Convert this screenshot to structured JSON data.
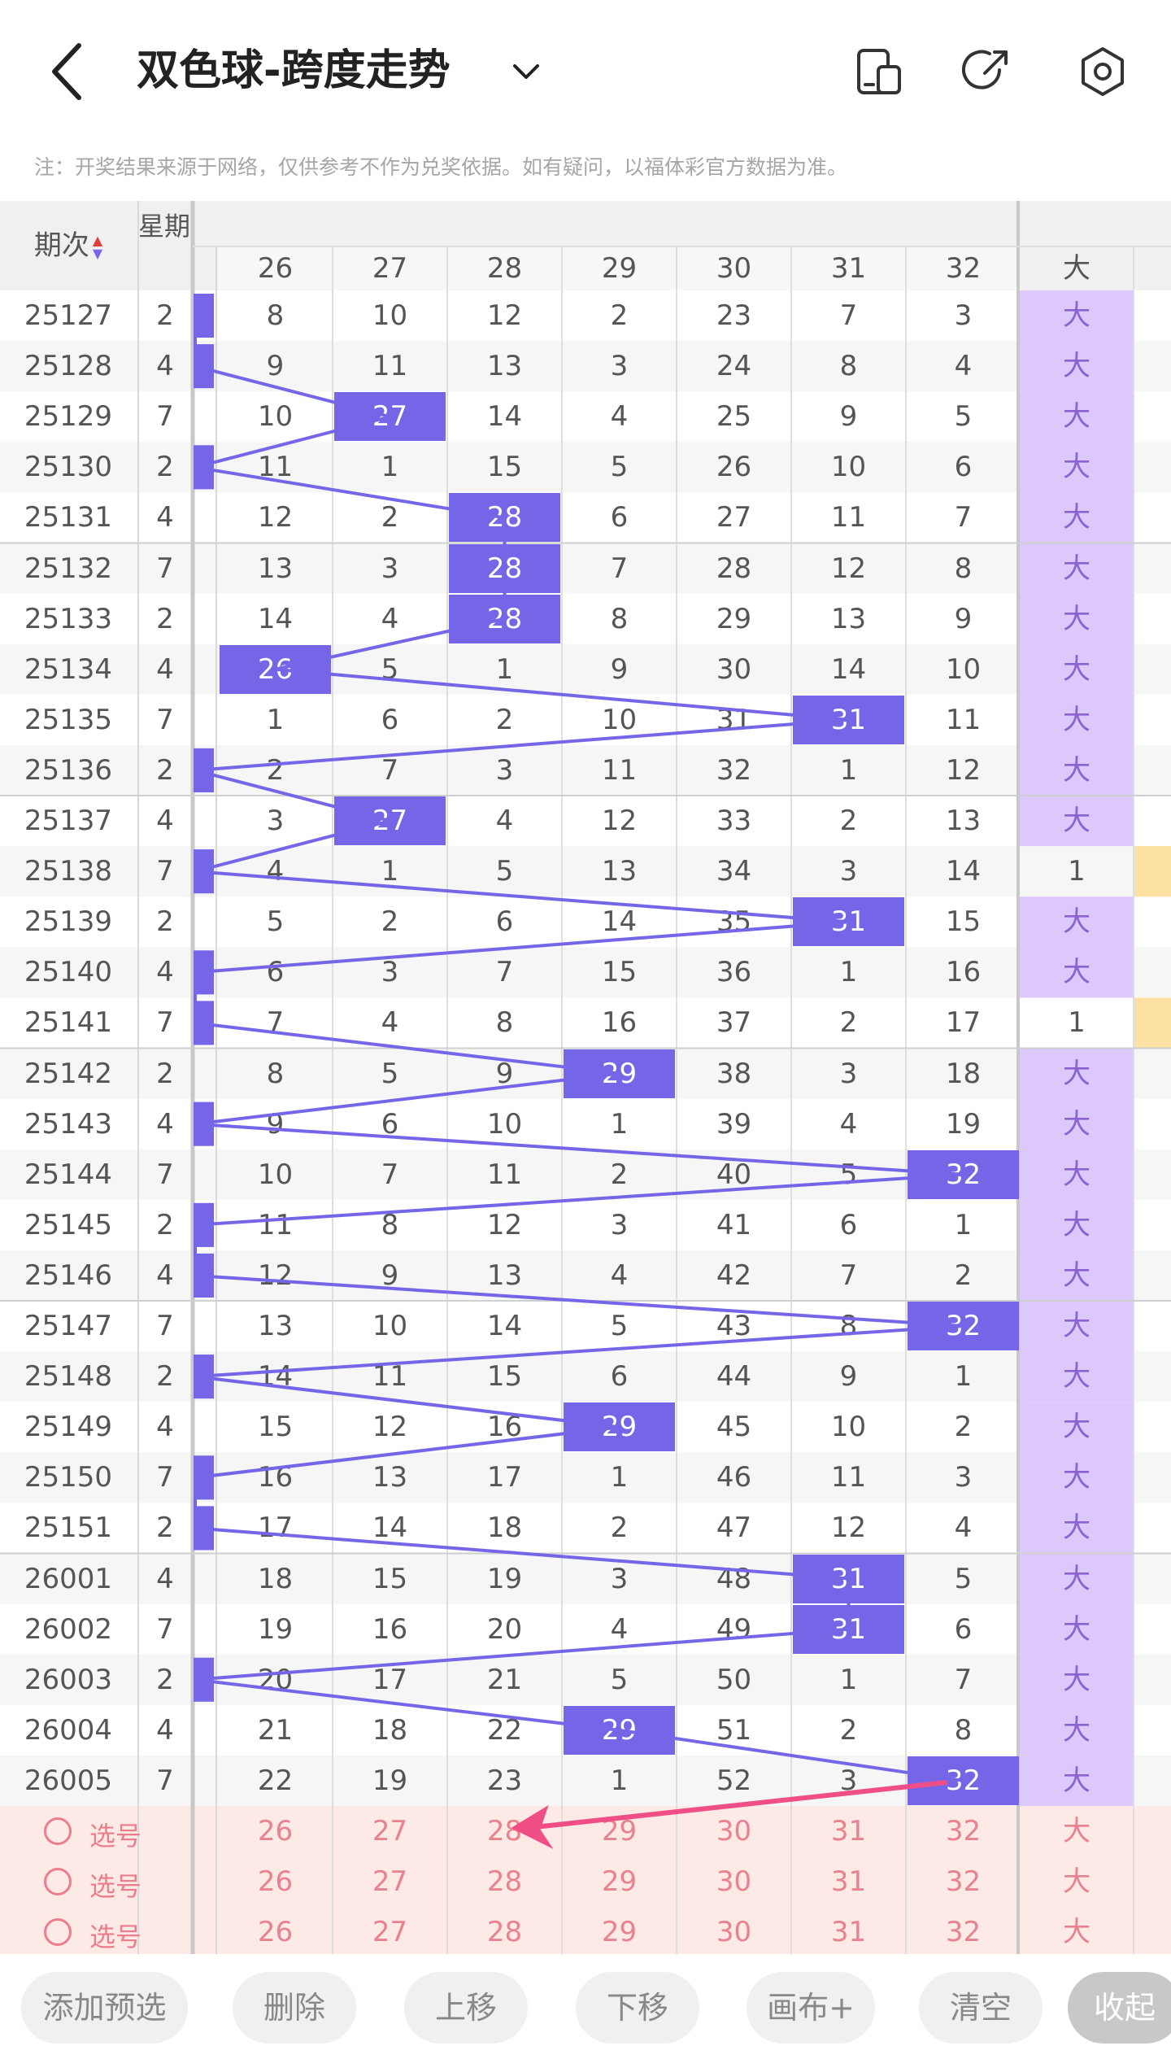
{
  "header": {
    "title": "双色球-跨度走势",
    "back_icon": "arrow-left-icon",
    "dropdown_icon": "chevron-down-icon",
    "icons": [
      "phone-layout-icon",
      "share-icon",
      "settings-icon"
    ]
  },
  "notice": "注：开奖结果来源于网络，仅供参考不作为兑奖依据。如有疑问，以福体彩官方数据为准。",
  "table": {
    "col_issue_label": "期次",
    "col_weekday_label": "星期",
    "span_columns": [
      "26",
      "27",
      "28",
      "29",
      "30",
      "31",
      "32"
    ],
    "size_column_label": "大",
    "rows": [
      {
        "issue": "25127",
        "weekday": "2",
        "cells": [
          "8",
          "10",
          "12",
          "2",
          "23",
          "7",
          "3"
        ],
        "size": "大",
        "hit": 0
      },
      {
        "issue": "25128",
        "weekday": "4",
        "cells": [
          "9",
          "11",
          "13",
          "3",
          "24",
          "8",
          "4"
        ],
        "size": "大",
        "hit": 0
      },
      {
        "issue": "25129",
        "weekday": "7",
        "cells": [
          "10",
          "27",
          "14",
          "4",
          "25",
          "9",
          "5"
        ],
        "size": "大",
        "hit": 27
      },
      {
        "issue": "25130",
        "weekday": "2",
        "cells": [
          "11",
          "1",
          "15",
          "5",
          "26",
          "10",
          "6"
        ],
        "size": "大",
        "hit": 0
      },
      {
        "issue": "25131",
        "weekday": "4",
        "cells": [
          "12",
          "2",
          "28",
          "6",
          "27",
          "11",
          "7"
        ],
        "size": "大",
        "hit": 28
      },
      {
        "issue": "25132",
        "weekday": "7",
        "cells": [
          "13",
          "3",
          "28",
          "7",
          "28",
          "12",
          "8"
        ],
        "size": "大",
        "hit": 28
      },
      {
        "issue": "25133",
        "weekday": "2",
        "cells": [
          "14",
          "4",
          "28",
          "8",
          "29",
          "13",
          "9"
        ],
        "size": "大",
        "hit": 28
      },
      {
        "issue": "25134",
        "weekday": "4",
        "cells": [
          "26",
          "5",
          "1",
          "9",
          "30",
          "14",
          "10"
        ],
        "size": "大",
        "hit": 26
      },
      {
        "issue": "25135",
        "weekday": "7",
        "cells": [
          "1",
          "6",
          "2",
          "10",
          "31",
          "31",
          "11"
        ],
        "size": "大",
        "hit": 31
      },
      {
        "issue": "25136",
        "weekday": "2",
        "cells": [
          "2",
          "7",
          "3",
          "11",
          "32",
          "1",
          "12"
        ],
        "size": "大",
        "hit": 0
      },
      {
        "issue": "25137",
        "weekday": "4",
        "cells": [
          "3",
          "27",
          "4",
          "12",
          "33",
          "2",
          "13"
        ],
        "size": "大",
        "hit": 27
      },
      {
        "issue": "25138",
        "weekday": "7",
        "cells": [
          "4",
          "1",
          "5",
          "13",
          "34",
          "3",
          "14"
        ],
        "size": "1",
        "hit": 0
      },
      {
        "issue": "25139",
        "weekday": "2",
        "cells": [
          "5",
          "2",
          "6",
          "14",
          "35",
          "31",
          "15"
        ],
        "size": "大",
        "hit": 31
      },
      {
        "issue": "25140",
        "weekday": "4",
        "cells": [
          "6",
          "3",
          "7",
          "15",
          "36",
          "1",
          "16"
        ],
        "size": "大",
        "hit": 0
      },
      {
        "issue": "25141",
        "weekday": "7",
        "cells": [
          "7",
          "4",
          "8",
          "16",
          "37",
          "2",
          "17"
        ],
        "size": "1",
        "hit": 0
      },
      {
        "issue": "25142",
        "weekday": "2",
        "cells": [
          "8",
          "5",
          "9",
          "29",
          "38",
          "3",
          "18"
        ],
        "size": "大",
        "hit": 29
      },
      {
        "issue": "25143",
        "weekday": "4",
        "cells": [
          "9",
          "6",
          "10",
          "1",
          "39",
          "4",
          "19"
        ],
        "size": "大",
        "hit": 0
      },
      {
        "issue": "25144",
        "weekday": "7",
        "cells": [
          "10",
          "7",
          "11",
          "2",
          "40",
          "5",
          "32"
        ],
        "size": "大",
        "hit": 32
      },
      {
        "issue": "25145",
        "weekday": "2",
        "cells": [
          "11",
          "8",
          "12",
          "3",
          "41",
          "6",
          "1"
        ],
        "size": "大",
        "hit": 0
      },
      {
        "issue": "25146",
        "weekday": "4",
        "cells": [
          "12",
          "9",
          "13",
          "4",
          "42",
          "7",
          "2"
        ],
        "size": "大",
        "hit": 0
      },
      {
        "issue": "25147",
        "weekday": "7",
        "cells": [
          "13",
          "10",
          "14",
          "5",
          "43",
          "8",
          "32"
        ],
        "size": "大",
        "hit": 32
      },
      {
        "issue": "25148",
        "weekday": "2",
        "cells": [
          "14",
          "11",
          "15",
          "6",
          "44",
          "9",
          "1"
        ],
        "size": "大",
        "hit": 0
      },
      {
        "issue": "25149",
        "weekday": "4",
        "cells": [
          "15",
          "12",
          "16",
          "29",
          "45",
          "10",
          "2"
        ],
        "size": "大",
        "hit": 29
      },
      {
        "issue": "25150",
        "weekday": "7",
        "cells": [
          "16",
          "13",
          "17",
          "1",
          "46",
          "11",
          "3"
        ],
        "size": "大",
        "hit": 0
      },
      {
        "issue": "25151",
        "weekday": "2",
        "cells": [
          "17",
          "14",
          "18",
          "2",
          "47",
          "12",
          "4"
        ],
        "size": "大",
        "hit": 0
      },
      {
        "issue": "26001",
        "weekday": "4",
        "cells": [
          "18",
          "15",
          "19",
          "3",
          "48",
          "31",
          "5"
        ],
        "size": "大",
        "hit": 31
      },
      {
        "issue": "26002",
        "weekday": "7",
        "cells": [
          "19",
          "16",
          "20",
          "4",
          "49",
          "31",
          "6"
        ],
        "size": "大",
        "hit": 31
      },
      {
        "issue": "26003",
        "weekday": "2",
        "cells": [
          "20",
          "17",
          "21",
          "5",
          "50",
          "1",
          "7"
        ],
        "size": "大",
        "hit": 0
      },
      {
        "issue": "26004",
        "weekday": "4",
        "cells": [
          "21",
          "18",
          "22",
          "29",
          "51",
          "2",
          "8"
        ],
        "size": "大",
        "hit": 29
      },
      {
        "issue": "26005",
        "weekday": "7",
        "cells": [
          "22",
          "19",
          "23",
          "1",
          "52",
          "3",
          "32"
        ],
        "size": "大",
        "hit": 32
      }
    ],
    "pick_rows": [
      {
        "label": "选号",
        "cells": [
          "26",
          "27",
          "28",
          "29",
          "30",
          "31",
          "32"
        ],
        "size": "大"
      },
      {
        "label": "选号",
        "cells": [
          "26",
          "27",
          "28",
          "29",
          "30",
          "31",
          "32"
        ],
        "size": "大"
      },
      {
        "label": "选号",
        "cells": [
          "26",
          "27",
          "28",
          "29",
          "30",
          "31",
          "32"
        ],
        "size": "大"
      }
    ]
  },
  "colors": {
    "highlight": "#7566e8",
    "big_bg": "#dcc8fb",
    "big_text": "#8a63d2",
    "small_marker": "#fde1a2",
    "pick_bg": "#fde9e5",
    "pick_text": "#e8828e",
    "arrow": "#ef4f86"
  },
  "toolbar": {
    "buttons": [
      "添加预选",
      "删除",
      "上移",
      "下移",
      "画布+",
      "清空",
      "收起"
    ]
  }
}
